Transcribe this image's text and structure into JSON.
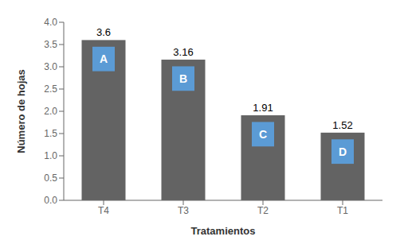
{
  "chart_data": {
    "type": "bar",
    "categories": [
      "T4",
      "T3",
      "T2",
      "T1"
    ],
    "values": [
      3.6,
      3.16,
      1.91,
      1.52
    ],
    "color": "#636363",
    "xlabel": "Tratamientos",
    "ylabel": "Número de hojas",
    "ylim": [
      0,
      4
    ],
    "yticks": [
      {
        "value": 0,
        "label": "0.0"
      },
      0.5,
      {
        "value": 1,
        "label": "1.0"
      },
      1.5,
      {
        "value": 2,
        "label": "2.0"
      },
      2.5,
      {
        "value": 3,
        "label": "3.0"
      },
      3.5,
      {
        "value": 4,
        "label": "4.0"
      }
    ],
    "data_labels": true,
    "grid": false,
    "annotations": [
      {
        "category": "T4",
        "text": "A",
        "color": "#5b9bd5"
      },
      {
        "category": "T3",
        "text": "B",
        "color": "#5b9bd5"
      },
      {
        "category": "T2",
        "text": "C",
        "color": "#5b9bd5"
      },
      {
        "category": "T1",
        "text": "D",
        "color": "#5b9bd5"
      }
    ]
  }
}
